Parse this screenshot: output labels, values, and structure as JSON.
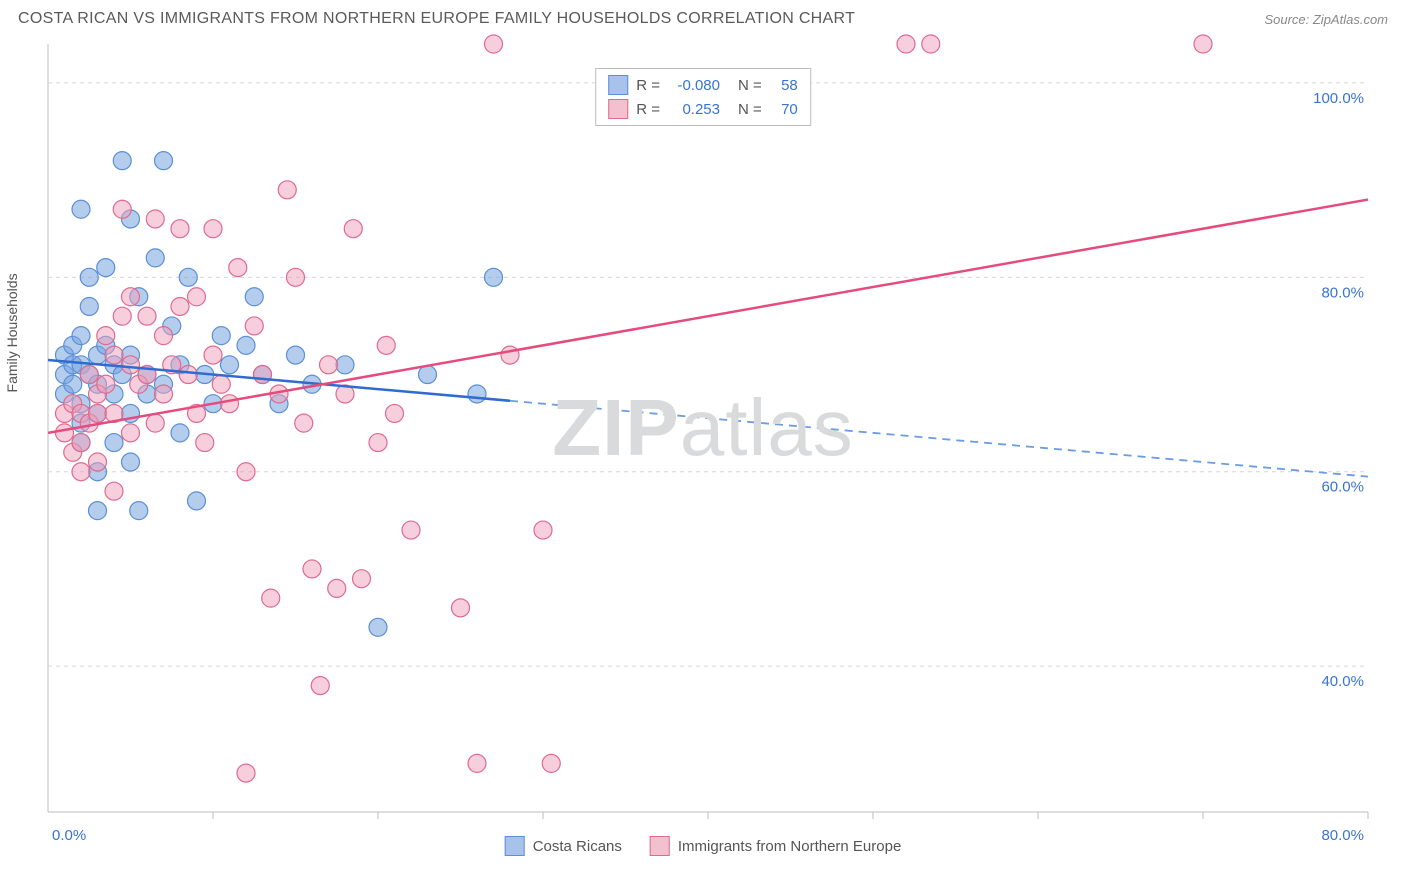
{
  "title": "COSTA RICAN VS IMMIGRANTS FROM NORTHERN EUROPE FAMILY HOUSEHOLDS CORRELATION CHART",
  "source": "Source: ZipAtlas.com",
  "watermark_a": "ZIP",
  "watermark_b": "atlas",
  "ylabel": "Family Households",
  "chart": {
    "type": "scatter-with-trend",
    "background_color": "#ffffff",
    "plot_border_color": "#bcbcbc",
    "grid_color": "#d6d6d6",
    "grid_dash": "4,4",
    "x_axis": {
      "min": 0,
      "max": 80,
      "tick_step": 10,
      "label_min": "0.0%",
      "label_max": "80.0%",
      "label_color": "#3973d4"
    },
    "y_axis": {
      "min": 25,
      "max": 104,
      "ticks": [
        40,
        60,
        80,
        100
      ],
      "tick_labels": [
        "40.0%",
        "60.0%",
        "80.0%",
        "100.0%"
      ],
      "label_color": "#3973d4"
    },
    "series": [
      {
        "name": "Costa Ricans",
        "swatch_fill": "#a8c3ea",
        "swatch_stroke": "#5b8fd6",
        "point_fill": "rgba(120,164,222,0.55)",
        "point_stroke": "#5b8fd6",
        "point_radius": 9,
        "trend": {
          "y_at_x0": 71.5,
          "y_at_x80": 59.5,
          "solid_until_x": 28,
          "stroke": "#2f6bd0",
          "dash_stroke": "#6b9be3",
          "width": 2.5
        },
        "stats": {
          "R": "-0.080",
          "N": "58"
        },
        "points": [
          [
            1,
            72
          ],
          [
            1,
            70
          ],
          [
            1,
            68
          ],
          [
            1.5,
            71
          ],
          [
            1.5,
            69
          ],
          [
            1.5,
            73
          ],
          [
            2,
            87
          ],
          [
            2,
            74
          ],
          [
            2,
            67
          ],
          [
            2,
            65
          ],
          [
            2,
            63
          ],
          [
            2,
            71
          ],
          [
            2.5,
            70
          ],
          [
            2.5,
            77
          ],
          [
            2.5,
            80
          ],
          [
            3,
            72
          ],
          [
            3,
            69
          ],
          [
            3,
            66
          ],
          [
            3,
            60
          ],
          [
            3,
            56
          ],
          [
            3.5,
            73
          ],
          [
            3.5,
            81
          ],
          [
            4,
            71
          ],
          [
            4,
            68
          ],
          [
            4,
            63
          ],
          [
            4.5,
            92
          ],
          [
            4.5,
            70
          ],
          [
            5,
            72
          ],
          [
            5,
            66
          ],
          [
            5,
            61
          ],
          [
            5.5,
            78
          ],
          [
            5.5,
            56
          ],
          [
            6,
            70
          ],
          [
            6,
            68
          ],
          [
            6.5,
            82
          ],
          [
            7,
            92
          ],
          [
            7,
            69
          ],
          [
            7.5,
            75
          ],
          [
            8,
            71
          ],
          [
            8,
            64
          ],
          [
            8.5,
            80
          ],
          [
            9,
            57
          ],
          [
            9.5,
            70
          ],
          [
            10,
            67
          ],
          [
            10.5,
            74
          ],
          [
            11,
            71
          ],
          [
            12,
            73
          ],
          [
            12.5,
            78
          ],
          [
            13,
            70
          ],
          [
            14,
            67
          ],
          [
            15,
            72
          ],
          [
            16,
            69
          ],
          [
            18,
            71
          ],
          [
            20,
            44
          ],
          [
            23,
            70
          ],
          [
            26,
            68
          ],
          [
            27,
            80
          ],
          [
            5,
            86
          ]
        ]
      },
      {
        "name": "Immigrants from Northern Europe",
        "swatch_fill": "#f3c0cd",
        "swatch_stroke": "#e06a8e",
        "point_fill": "rgba(240,160,185,0.50)",
        "point_stroke": "#e06a8e",
        "point_radius": 9,
        "trend": {
          "y_at_x0": 64,
          "y_at_x80": 88,
          "solid_until_x": 80,
          "stroke": "#e54b7c",
          "dash_stroke": "#e54b7c",
          "width": 2.5
        },
        "stats": {
          "R": "0.253",
          "N": "70"
        },
        "points": [
          [
            1,
            66
          ],
          [
            1,
            64
          ],
          [
            1.5,
            67
          ],
          [
            1.5,
            62
          ],
          [
            2,
            66
          ],
          [
            2,
            63
          ],
          [
            2,
            60
          ],
          [
            2.5,
            70
          ],
          [
            2.5,
            65
          ],
          [
            3,
            68
          ],
          [
            3,
            66
          ],
          [
            3,
            61
          ],
          [
            3.5,
            74
          ],
          [
            3.5,
            69
          ],
          [
            4,
            72
          ],
          [
            4,
            66
          ],
          [
            4,
            58
          ],
          [
            4.5,
            87
          ],
          [
            4.5,
            76
          ],
          [
            5,
            78
          ],
          [
            5,
            71
          ],
          [
            5,
            64
          ],
          [
            5.5,
            69
          ],
          [
            6,
            76
          ],
          [
            6,
            70
          ],
          [
            6.5,
            86
          ],
          [
            6.5,
            65
          ],
          [
            7,
            74
          ],
          [
            7,
            68
          ],
          [
            7.5,
            71
          ],
          [
            8,
            85
          ],
          [
            8,
            77
          ],
          [
            8.5,
            70
          ],
          [
            9,
            78
          ],
          [
            9,
            66
          ],
          [
            9.5,
            63
          ],
          [
            10,
            85
          ],
          [
            10,
            72
          ],
          [
            10.5,
            69
          ],
          [
            11,
            67
          ],
          [
            11.5,
            81
          ],
          [
            12,
            60
          ],
          [
            12,
            29
          ],
          [
            12.5,
            75
          ],
          [
            13,
            70
          ],
          [
            13.5,
            47
          ],
          [
            14,
            68
          ],
          [
            14.5,
            89
          ],
          [
            15,
            80
          ],
          [
            15.5,
            65
          ],
          [
            16,
            50
          ],
          [
            16.5,
            38
          ],
          [
            17,
            71
          ],
          [
            17.5,
            48
          ],
          [
            18,
            68
          ],
          [
            18.5,
            85
          ],
          [
            19,
            49
          ],
          [
            20,
            63
          ],
          [
            20.5,
            73
          ],
          [
            21,
            66
          ],
          [
            22,
            54
          ],
          [
            25,
            46
          ],
          [
            26,
            30
          ],
          [
            27,
            104
          ],
          [
            28,
            72
          ],
          [
            30,
            54
          ],
          [
            30.5,
            30
          ],
          [
            52,
            104
          ],
          [
            53.5,
            104
          ],
          [
            70,
            104
          ]
        ]
      }
    ],
    "legend_bottom": [
      {
        "label": "Costa Ricans",
        "series_index": 0
      },
      {
        "label": "Immigrants from Northern Europe",
        "series_index": 1
      }
    ]
  }
}
